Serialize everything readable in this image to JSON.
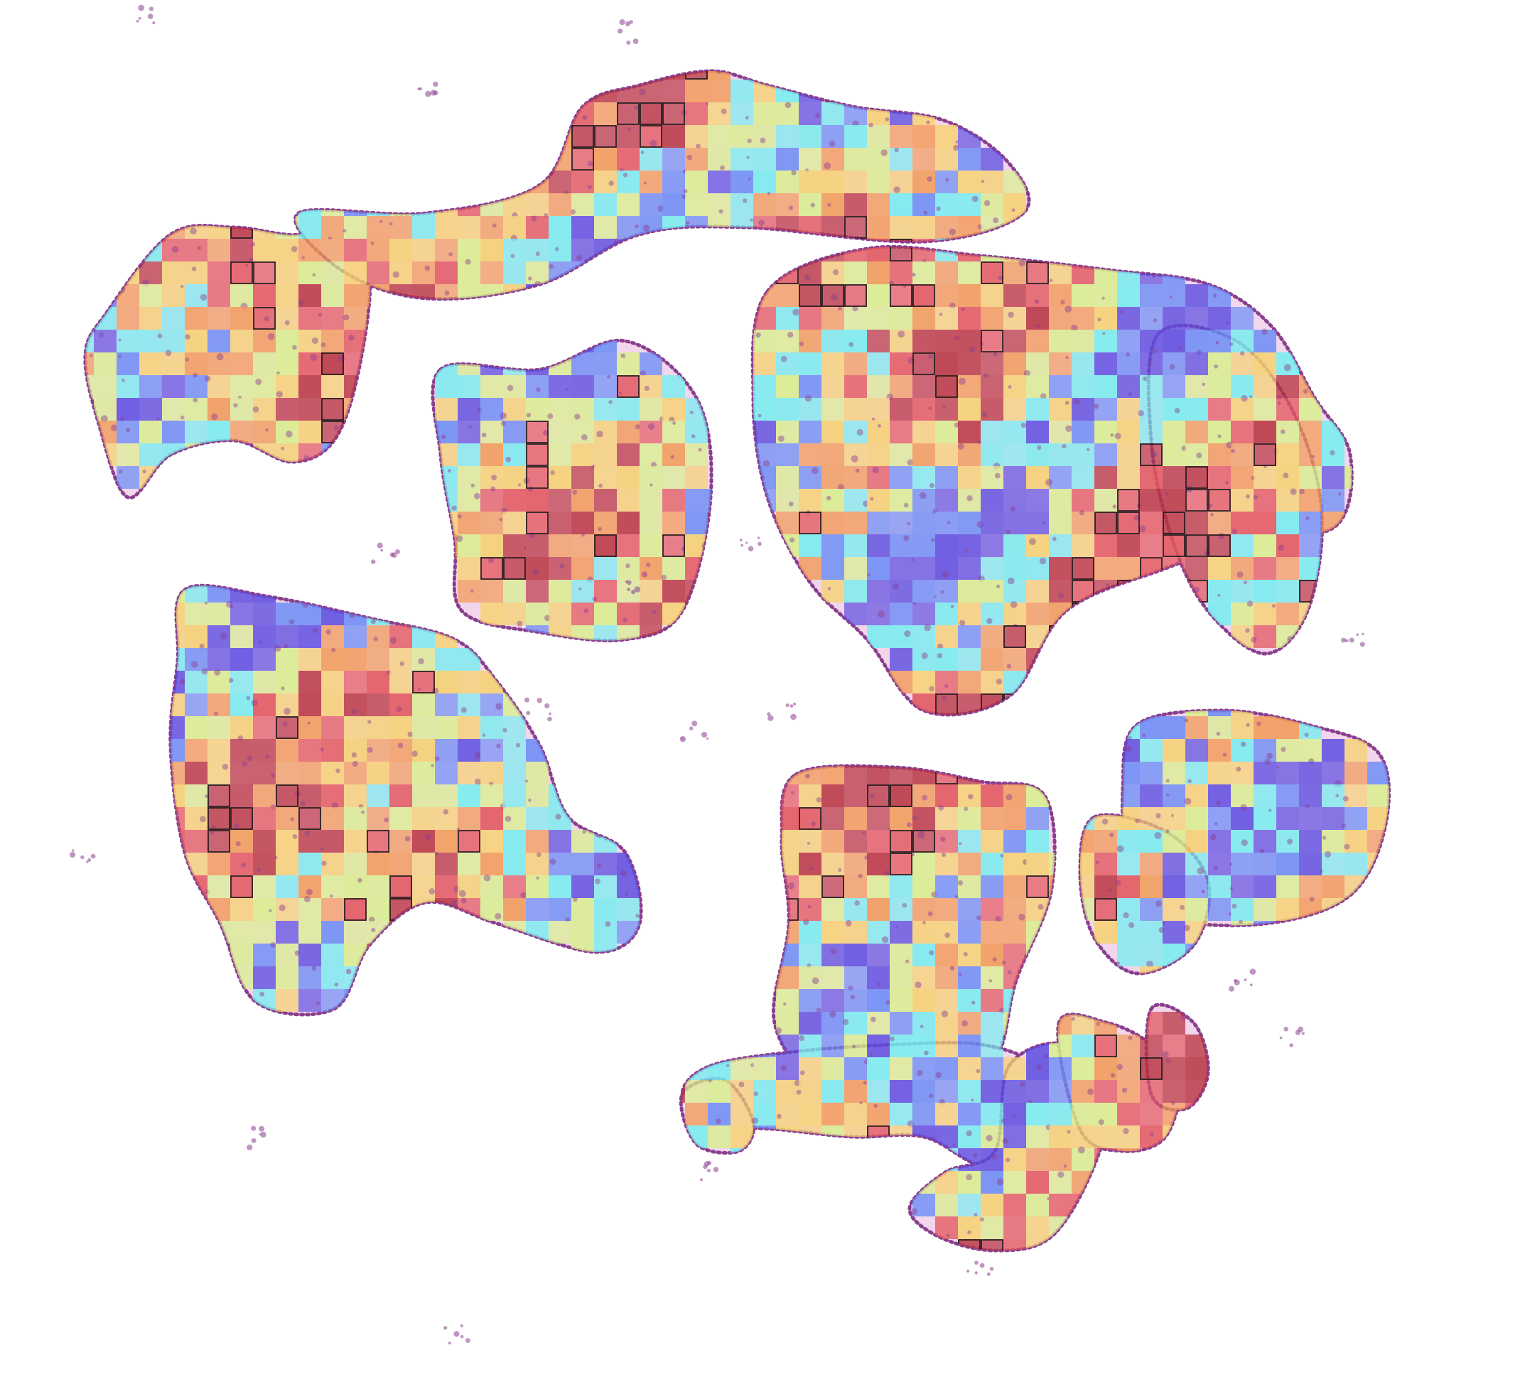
{
  "image": {
    "content": "histology-tissue-heatmap",
    "colormap": [
      "#5a4be0",
      "#6a8cf6",
      "#74eef0",
      "#d8f08a",
      "#f6d26e",
      "#f29a55",
      "#e2545a",
      "#b8323e"
    ],
    "tissue_color": "#8a3f8e",
    "tissue_fill": "#f2d6ec",
    "highlight_border": "#1a1a1a",
    "background": "#ffffff",
    "seed": 20240611
  }
}
